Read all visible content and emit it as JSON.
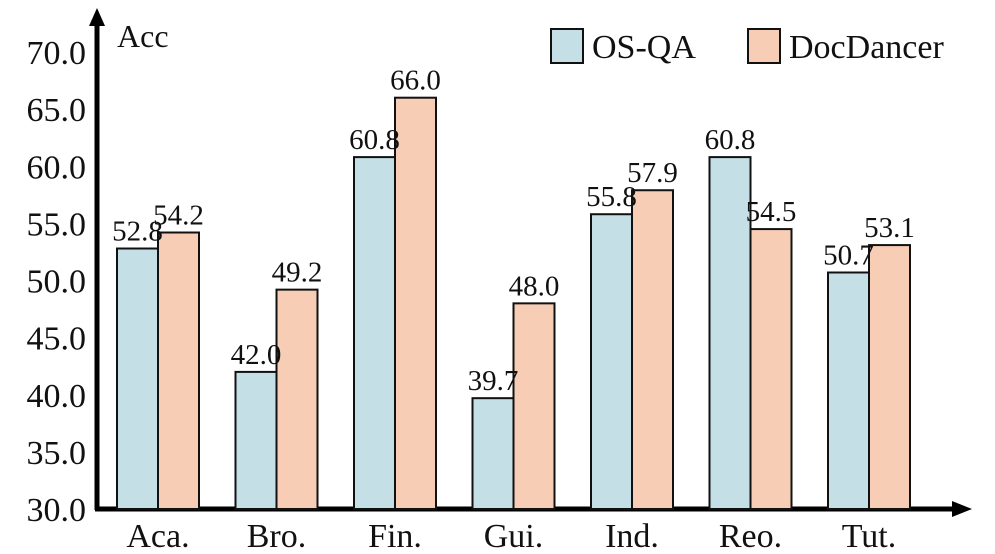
{
  "chart_data": {
    "type": "bar",
    "categories": [
      "Aca.",
      "Bro.",
      "Fin.",
      "Gui.",
      "Ind.",
      "Reo.",
      "Tut."
    ],
    "series": [
      {
        "name": "OS-QA",
        "color": "#c5dfe6",
        "values": [
          52.8,
          42.0,
          60.8,
          39.7,
          55.8,
          60.8,
          50.7
        ]
      },
      {
        "name": "DocDancer",
        "color": "#f8cdb6",
        "values": [
          54.2,
          49.2,
          66.0,
          48.0,
          57.9,
          54.5,
          53.1
        ]
      }
    ],
    "data_labels": [
      [
        "52.8",
        "42.0",
        "60.8",
        "39.7",
        "55.8",
        "60.8",
        "50.7"
      ],
      [
        "54.2",
        "49.2",
        "66.0",
        "48.0",
        "57.9",
        "54.5",
        "53.1"
      ]
    ],
    "ylabel": "Acc",
    "xlabel": "",
    "title": "",
    "ylim": [
      30,
      70
    ],
    "yticks": [
      "30.0",
      "35.0",
      "40.0",
      "45.0",
      "50.0",
      "55.0",
      "60.0",
      "65.0",
      "70.0"
    ],
    "grid": false,
    "legend_position": "top-right",
    "bar_edge_color": "#111111"
  }
}
